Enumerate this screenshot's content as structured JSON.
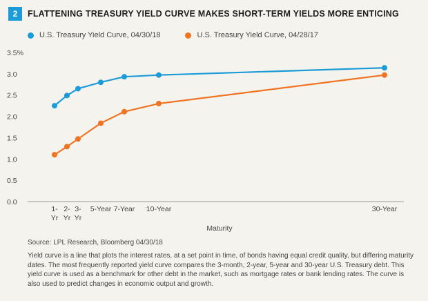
{
  "figure": {
    "number": "2",
    "title": "FLATTENING TREASURY YIELD CURVE MAKES SHORT-TERM YIELDS MORE ENTICING"
  },
  "colors": {
    "series_2018": "#1b9bd7",
    "series_2017": "#f07322",
    "axis": "#9a9a9a"
  },
  "chart_data": {
    "type": "line",
    "xlabel": "Maturity",
    "ylabel": "",
    "ylim": [
      0,
      3.5
    ],
    "yticks": [
      "0.0",
      "0.5",
      "1.0",
      "1.5",
      "2.0",
      "2.5",
      "3.0",
      "3.5%"
    ],
    "x_years": [
      1,
      2,
      3,
      5,
      7,
      10,
      30
    ],
    "x_tick_labels": [
      {
        "year": 1,
        "lines": [
          "1-",
          "Yr"
        ]
      },
      {
        "year": 2,
        "lines": [
          "2-",
          "Yr"
        ]
      },
      {
        "year": 3,
        "lines": [
          "3-",
          "Yr"
        ]
      },
      {
        "year": 5,
        "lines": [
          "5-Year"
        ]
      },
      {
        "year": 7,
        "lines": [
          "7-Year"
        ]
      },
      {
        "year": 10,
        "lines": [
          "10-Year"
        ]
      },
      {
        "year": 30,
        "lines": [
          "30-Year"
        ]
      }
    ],
    "series": [
      {
        "name": "U.S. Treasury Yield Curve, 04/30/18",
        "color_key": "series_2018",
        "values": [
          2.25,
          2.49,
          2.65,
          2.8,
          2.93,
          2.97,
          3.14
        ]
      },
      {
        "name": "U.S. Treasury Yield Curve, 04/28/17",
        "color_key": "series_2017",
        "values": [
          1.1,
          1.29,
          1.47,
          1.84,
          2.11,
          2.3,
          2.97
        ]
      }
    ]
  },
  "source": "Source: LPL Research, Bloomberg  04/30/18",
  "note": "Yield curve is a line that plots the interest rates, at a set point in time, of bonds having equal credit quality, but differing maturity dates. The most frequently reported yield curve compares the 3-month, 2-year, 5-year and 30-year U.S. Treasury debt. This yield curve is used as a benchmark for other debt in the market, such as mortgage rates or bank lending rates. The curve is also used to predict changes in economic output and growth."
}
